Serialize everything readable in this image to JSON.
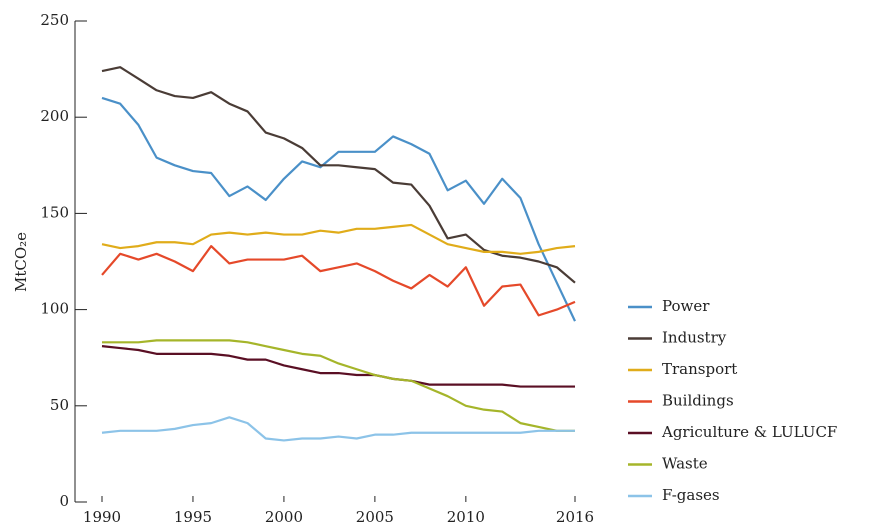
{
  "chart_data": {
    "type": "line",
    "y_label": "MtCO₂e",
    "x": [
      1990,
      1991,
      1992,
      1993,
      1994,
      1995,
      1996,
      1997,
      1998,
      1999,
      2000,
      2001,
      2002,
      2003,
      2004,
      2005,
      2006,
      2007,
      2008,
      2009,
      2010,
      2011,
      2012,
      2013,
      2014,
      2015,
      2016
    ],
    "xlim": [
      1990,
      2016
    ],
    "xticks": [
      1990,
      1995,
      2000,
      2005,
      2010,
      2016
    ],
    "ylim": [
      0,
      250
    ],
    "yticks": [
      0,
      50,
      100,
      150,
      200,
      250
    ],
    "grid": false,
    "legend": "right",
    "series": [
      {
        "name": "Power",
        "color": "#4a90c8",
        "values": [
          210,
          207,
          196,
          179,
          175,
          172,
          171,
          159,
          164,
          157,
          168,
          177,
          174,
          182,
          182,
          182,
          190,
          186,
          181,
          162,
          167,
          155,
          168,
          158,
          134,
          114,
          94
        ]
      },
      {
        "name": "Industry",
        "color": "#4a3c36",
        "values": [
          224,
          226,
          220,
          214,
          211,
          210,
          213,
          207,
          203,
          192,
          189,
          184,
          175,
          175,
          174,
          173,
          166,
          165,
          154,
          137,
          139,
          131,
          128,
          127,
          125,
          122,
          114
        ]
      },
      {
        "name": "Transport",
        "color": "#e0ac1a",
        "values": [
          134,
          132,
          133,
          135,
          135,
          134,
          139,
          140,
          139,
          140,
          139,
          139,
          141,
          140,
          142,
          142,
          143,
          144,
          139,
          134,
          132,
          130,
          130,
          129,
          130,
          132,
          133
        ]
      },
      {
        "name": "Buildings",
        "color": "#e5492a",
        "values": [
          118,
          129,
          126,
          129,
          125,
          120,
          133,
          124,
          126,
          126,
          126,
          128,
          120,
          122,
          124,
          120,
          115,
          111,
          118,
          112,
          122,
          102,
          112,
          113,
          97,
          100,
          104
        ]
      },
      {
        "name": "Agriculture & LULUCF",
        "color": "#5a0f24",
        "values": [
          81,
          80,
          79,
          77,
          77,
          77,
          77,
          76,
          74,
          74,
          71,
          69,
          67,
          67,
          66,
          66,
          64,
          63,
          61,
          61,
          61,
          61,
          61,
          60,
          60,
          60,
          60
        ]
      },
      {
        "name": "Waste",
        "color": "#a5b52a",
        "values": [
          83,
          83,
          83,
          84,
          84,
          84,
          84,
          84,
          83,
          81,
          79,
          77,
          76,
          72,
          69,
          66,
          64,
          63,
          59,
          55,
          50,
          48,
          47,
          41,
          39,
          37,
          37
        ]
      },
      {
        "name": "F-gases",
        "color": "#8cc3e8",
        "values": [
          36,
          37,
          37,
          37,
          38,
          40,
          41,
          44,
          41,
          33,
          32,
          33,
          33,
          34,
          33,
          35,
          35,
          36,
          36,
          36,
          36,
          36,
          36,
          36,
          37,
          37,
          37
        ]
      }
    ]
  }
}
